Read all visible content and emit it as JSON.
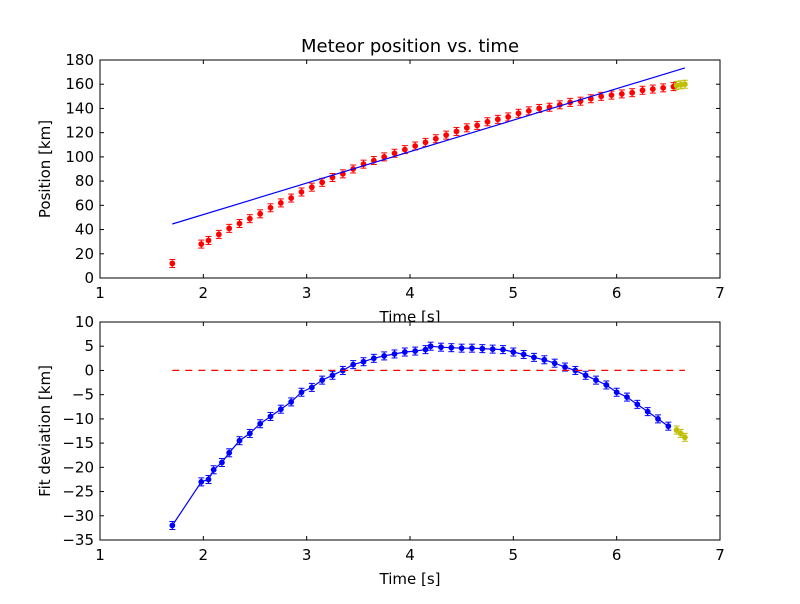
{
  "figure": {
    "title": "Meteor position vs. time",
    "background": "#ffffff"
  },
  "chart_data": [
    {
      "type": "scatter",
      "title": "Meteor position vs. time",
      "xlabel": "Time [s]",
      "ylabel": "Position [km]",
      "xlim": [
        1,
        7
      ],
      "ylim": [
        0,
        180
      ],
      "xticks": [
        1,
        2,
        3,
        4,
        5,
        6,
        7
      ],
      "yticks": [
        0,
        20,
        40,
        60,
        80,
        100,
        120,
        140,
        160,
        180
      ],
      "grid": false,
      "series": [
        {
          "style": "points",
          "color": "#ff0000",
          "x": [
            1.7,
            1.98,
            2.05,
            2.15,
            2.25,
            2.35,
            2.45,
            2.55,
            2.65,
            2.75,
            2.85,
            2.95,
            3.05,
            3.15,
            3.25,
            3.35,
            3.45,
            3.55,
            3.65,
            3.75,
            3.85,
            3.95,
            4.05,
            4.15,
            4.25,
            4.35,
            4.45,
            4.55,
            4.65,
            4.75,
            4.85,
            4.95,
            5.05,
            5.15,
            5.25,
            5.35,
            5.45,
            5.55,
            5.65,
            5.75,
            5.85,
            5.95,
            6.05,
            6.15,
            6.25,
            6.35,
            6.45,
            6.55
          ],
          "y": [
            12,
            28,
            31,
            36,
            41,
            45,
            49,
            53,
            58,
            62,
            66,
            71,
            75,
            79,
            83,
            86,
            90,
            94,
            97,
            100,
            103,
            106,
            109,
            112,
            115,
            118,
            121,
            124,
            126,
            129,
            131,
            133,
            136,
            138,
            140,
            141,
            143,
            145,
            146,
            148,
            150,
            151,
            152,
            153,
            155,
            156,
            157,
            158
          ]
        },
        {
          "style": "points",
          "color": "#bfbf00",
          "x": [
            6.58,
            6.62,
            6.66
          ],
          "y": [
            159,
            159.5,
            160
          ]
        },
        {
          "style": "line",
          "color": "#0000ff",
          "x": [
            1.7,
            6.66
          ],
          "y": [
            44.6,
            173.5
          ]
        }
      ]
    },
    {
      "type": "line",
      "xlabel": "Time [s]",
      "ylabel": "Fit deviation [km]",
      "xlim": [
        1,
        7
      ],
      "ylim": [
        -35,
        10
      ],
      "xticks": [
        1,
        2,
        3,
        4,
        5,
        6,
        7
      ],
      "yticks": [
        -35,
        -30,
        -25,
        -20,
        -15,
        -10,
        -5,
        0,
        5,
        10
      ],
      "grid": false,
      "series": [
        {
          "style": "line-markers",
          "color": "#0000ff",
          "x": [
            1.7,
            1.98,
            2.05,
            2.1,
            2.18,
            2.25,
            2.35,
            2.45,
            2.55,
            2.65,
            2.75,
            2.85,
            2.95,
            3.05,
            3.15,
            3.25,
            3.35,
            3.45,
            3.55,
            3.65,
            3.75,
            3.85,
            3.95,
            4.05,
            4.15,
            4.2,
            4.3,
            4.4,
            4.5,
            4.6,
            4.7,
            4.8,
            4.9,
            5.0,
            5.1,
            5.2,
            5.3,
            5.4,
            5.5,
            5.6,
            5.7,
            5.8,
            5.9,
            6.0,
            6.1,
            6.2,
            6.3,
            6.4,
            6.5
          ],
          "y": [
            -32,
            -23,
            -22.5,
            -20.5,
            -19,
            -17,
            -14.5,
            -13,
            -11,
            -9.5,
            -8,
            -6.5,
            -4.5,
            -3.5,
            -2,
            -1,
            0,
            1.2,
            1.8,
            2.5,
            3,
            3.4,
            3.8,
            4,
            4.3,
            5,
            4.8,
            4.7,
            4.6,
            4.6,
            4.5,
            4.4,
            4.3,
            3.8,
            3.3,
            2.7,
            2.2,
            1.5,
            0.7,
            0,
            -1,
            -2,
            -3,
            -4.5,
            -5.5,
            -7,
            -8.5,
            -10,
            -11.5
          ]
        },
        {
          "style": "points",
          "color": "#bfbf00",
          "x": [
            6.58,
            6.62,
            6.66
          ],
          "y": [
            -12.3,
            -13,
            -13.8
          ]
        },
        {
          "style": "dashed-line",
          "color": "#ff0000",
          "x": [
            1.7,
            6.66
          ],
          "y": [
            0,
            0
          ]
        }
      ]
    }
  ]
}
